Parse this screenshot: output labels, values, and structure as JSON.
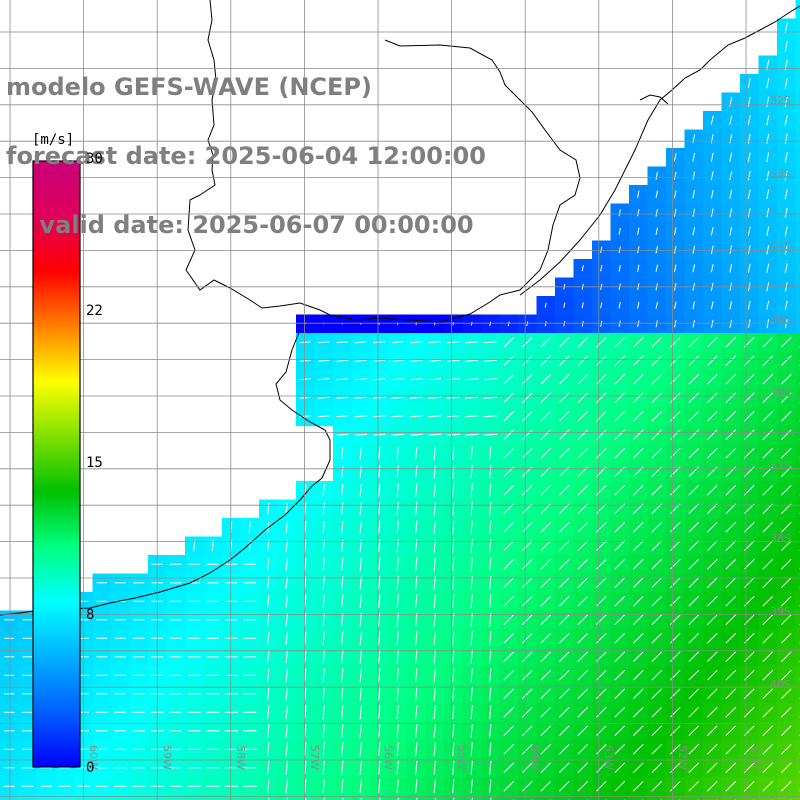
{
  "title": {
    "line1": "modelo GEFS-WAVE (NCEP)",
    "line2": "forecast date: 2025-06-04 12:00:00",
    "line3": "    valid date: 2025-06-07 00:00:00"
  },
  "colorbar": {
    "unit": "[m/s]",
    "min": 0,
    "max": 30,
    "ticks": [
      "30",
      "22",
      "15",
      "8",
      "0"
    ],
    "tick_values": [
      30,
      22,
      15,
      8,
      0
    ],
    "colors": [
      "#0000ff",
      "#0060ff",
      "#00b0ff",
      "#00ffff",
      "#00ff80",
      "#00c000",
      "#80e000",
      "#ffff00",
      "#ff8000",
      "#ff0000",
      "#e0005a",
      "#c8007a"
    ]
  },
  "map": {
    "lat_labels": [
      "32S",
      "33S",
      "34S",
      "35S",
      "36S",
      "37S",
      "38S",
      "39S",
      "40S"
    ],
    "lon_labels": [
      "60W",
      "59W",
      "58W",
      "57W",
      "56W",
      "55W",
      "54W",
      "53W",
      "52W",
      "51W"
    ],
    "lon_range": [
      -61.0,
      -50.0
    ],
    "lat_range": [
      -31.0,
      -41.5
    ],
    "field": "wind speed (m/s) with direction vectors",
    "land_color": "#ffffff",
    "grid_color": "#8c8c8c"
  }
}
